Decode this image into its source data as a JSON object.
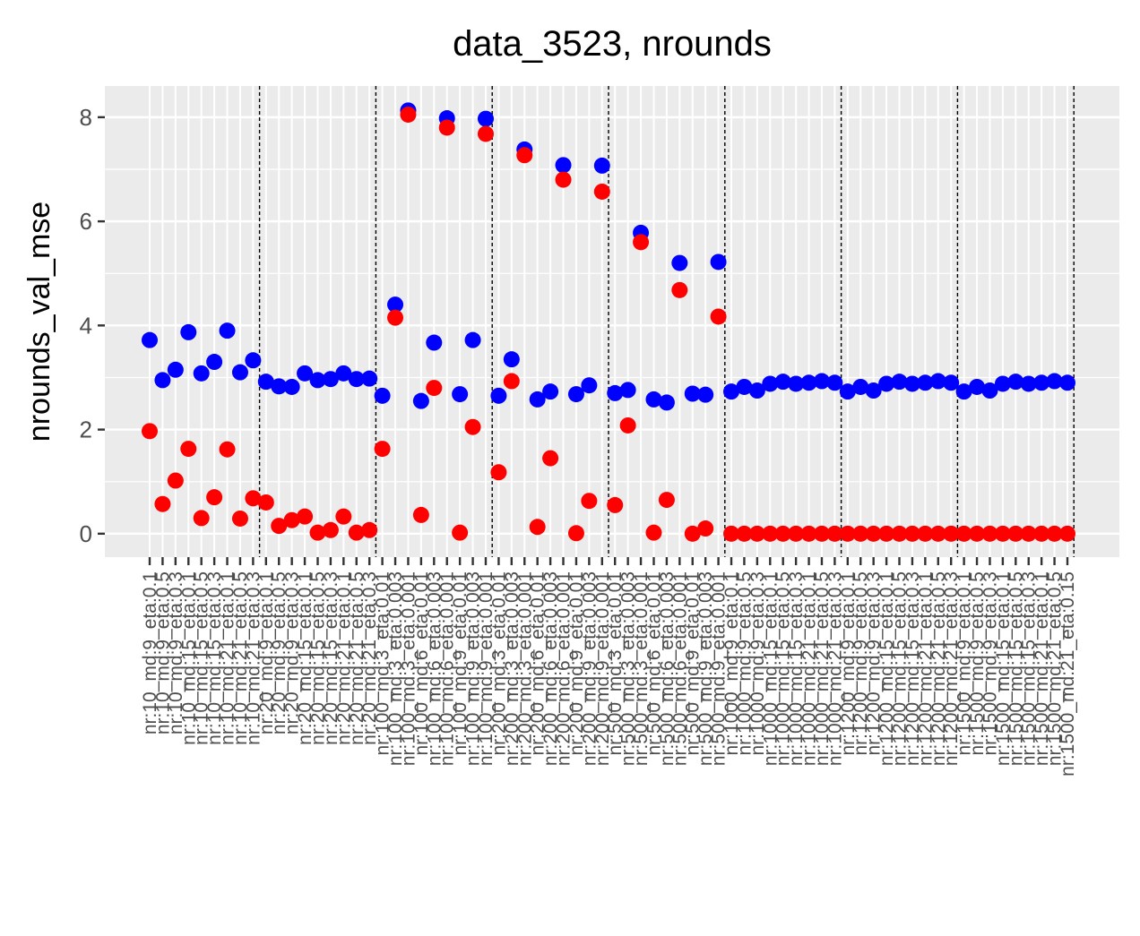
{
  "chart_data": {
    "type": "scatter",
    "title": "data_3523, nrounds",
    "xlabel": "",
    "ylabel": "nrounds_val_mse",
    "ylim": [
      -0.45,
      8.6
    ],
    "y_ticks": [
      0,
      2,
      4,
      6,
      8
    ],
    "grid": true,
    "legend": "none",
    "colors": {
      "blue": "#0000ff",
      "red": "#ff0000",
      "panel": "#ebebeb",
      "grid": "#ffffff",
      "separator": "#000000"
    },
    "categories": [
      "nr:10_md:9_eta:0.1",
      "nr:10_md:9_eta:0.5",
      "nr:10_md:9_eta:0.3",
      "nr:10_md:15_eta:0.1",
      "nr:10_md:15_eta:0.5",
      "nr:10_md:15_eta:0.3",
      "nr:10_md:21_eta:0.1",
      "nr:10_md:21_eta:0.5",
      "nr:10_md:21_eta:0.3",
      "nr:20_md:9_eta:0.1",
      "nr:20_md:9_eta:0.5",
      "nr:20_md:9_eta:0.3",
      "nr:20_md:15_eta:0.1",
      "nr:20_md:15_eta:0.5",
      "nr:20_md:15_eta:0.3",
      "nr:20_md:21_eta:0.1",
      "nr:20_md:21_eta:0.5",
      "nr:20_md:21_eta:0.3",
      "nr:100_md:3_eta:0.01",
      "nr:100_md:3_eta:0.003",
      "nr:100_md:3_eta:0.001",
      "nr:100_md:6_eta:0.01",
      "nr:100_md:6_eta:0.003",
      "nr:100_md:6_eta:0.001",
      "nr:100_md:9_eta:0.01",
      "nr:100_md:9_eta:0.003",
      "nr:100_md:9_eta:0.001",
      "nr:200_md:3_eta:0.01",
      "nr:200_md:3_eta:0.003",
      "nr:200_md:3_eta:0.001",
      "nr:200_md:6_eta:0.01",
      "nr:200_md:6_eta:0.003",
      "nr:200_md:6_eta:0.001",
      "nr:200_md:9_eta:0.01",
      "nr:200_md:9_eta:0.003",
      "nr:200_md:9_eta:0.001",
      "nr:500_md:3_eta:0.01",
      "nr:500_md:3_eta:0.003",
      "nr:500_md:3_eta:0.001",
      "nr:500_md:6_eta:0.01",
      "nr:500_md:6_eta:0.003",
      "nr:500_md:6_eta:0.001",
      "nr:500_md:9_eta:0.01",
      "nr:500_md:9_eta:0.003",
      "nr:500_md:9_eta:0.001",
      "nr:1000_md:9_eta:0.1",
      "nr:1000_md:9_eta:0.5",
      "nr:1000_md:9_eta:0.3",
      "nr:1000_md:15_eta:0.1",
      "nr:1000_md:15_eta:0.5",
      "nr:1000_md:15_eta:0.3",
      "nr:1000_md:21_eta:0.1",
      "nr:1000_md:21_eta:0.5",
      "nr:1000_md:21_eta:0.3",
      "nr:1200_md:9_eta:0.1",
      "nr:1200_md:9_eta:0.5",
      "nr:1200_md:9_eta:0.3",
      "nr:1200_md:15_eta:0.1",
      "nr:1200_md:15_eta:0.5",
      "nr:1200_md:15_eta:0.3",
      "nr:1200_md:21_eta:0.1",
      "nr:1200_md:21_eta:0.5",
      "nr:1200_md:21_eta:0.3",
      "nr:1500_md:9_eta:0.1",
      "nr:1500_md:9_eta:0.5",
      "nr:1500_md:9_eta:0.3",
      "nr:1500_md:15_eta:0.1",
      "nr:1500_md:15_eta:0.5",
      "nr:1500_md:15_eta:0.3",
      "nr:1500_md:21_eta:0.1",
      "nr:1500_md:21_eta:0.5",
      "nr:1500_md:21_eta:0.15"
    ],
    "group_boundaries": [
      9,
      18,
      27,
      36,
      45,
      54,
      63,
      72
    ],
    "series": [
      {
        "color": "#0000ff",
        "values": [
          3.72,
          2.95,
          3.15,
          3.87,
          3.08,
          3.3,
          3.9,
          3.1,
          3.33,
          2.92,
          2.83,
          2.82,
          3.08,
          2.95,
          2.97,
          3.08,
          2.97,
          2.98,
          2.65,
          4.4,
          8.13,
          2.55,
          3.67,
          7.98,
          2.68,
          3.72,
          7.97,
          2.65,
          3.35,
          7.38,
          2.58,
          2.73,
          7.08,
          2.68,
          2.85,
          7.07,
          2.7,
          2.76,
          5.78,
          2.58,
          2.52,
          5.2,
          2.69,
          2.67,
          5.22,
          2.73,
          2.82,
          2.75,
          2.88,
          2.92,
          2.88,
          2.9,
          2.93,
          2.9,
          2.73,
          2.82,
          2.75,
          2.88,
          2.92,
          2.88,
          2.9,
          2.93,
          2.9,
          2.73,
          2.82,
          2.75,
          2.88,
          2.92,
          2.88,
          2.9,
          2.93,
          2.9
        ]
      },
      {
        "color": "#ff0000",
        "values": [
          1.97,
          0.57,
          1.02,
          1.63,
          0.3,
          0.7,
          1.62,
          0.29,
          0.68,
          0.6,
          0.15,
          0.26,
          0.33,
          0.02,
          0.07,
          0.33,
          0.02,
          0.07,
          1.63,
          4.15,
          8.05,
          0.36,
          2.8,
          7.8,
          0.02,
          2.05,
          7.68,
          1.18,
          2.93,
          7.27,
          0.13,
          1.45,
          6.8,
          0.01,
          0.63,
          6.57,
          0.55,
          2.08,
          5.6,
          0.02,
          0.65,
          4.68,
          0.0,
          0.1,
          4.17,
          0.0,
          0.0,
          0.0,
          0.0,
          0.0,
          0.0,
          0.0,
          0.0,
          0.0,
          0.0,
          0.0,
          0.0,
          0.0,
          0.0,
          0.0,
          0.0,
          0.0,
          0.0,
          0.0,
          0.0,
          0.0,
          0.0,
          0.0,
          0.0,
          0.0,
          0.0,
          0.0
        ]
      }
    ]
  }
}
